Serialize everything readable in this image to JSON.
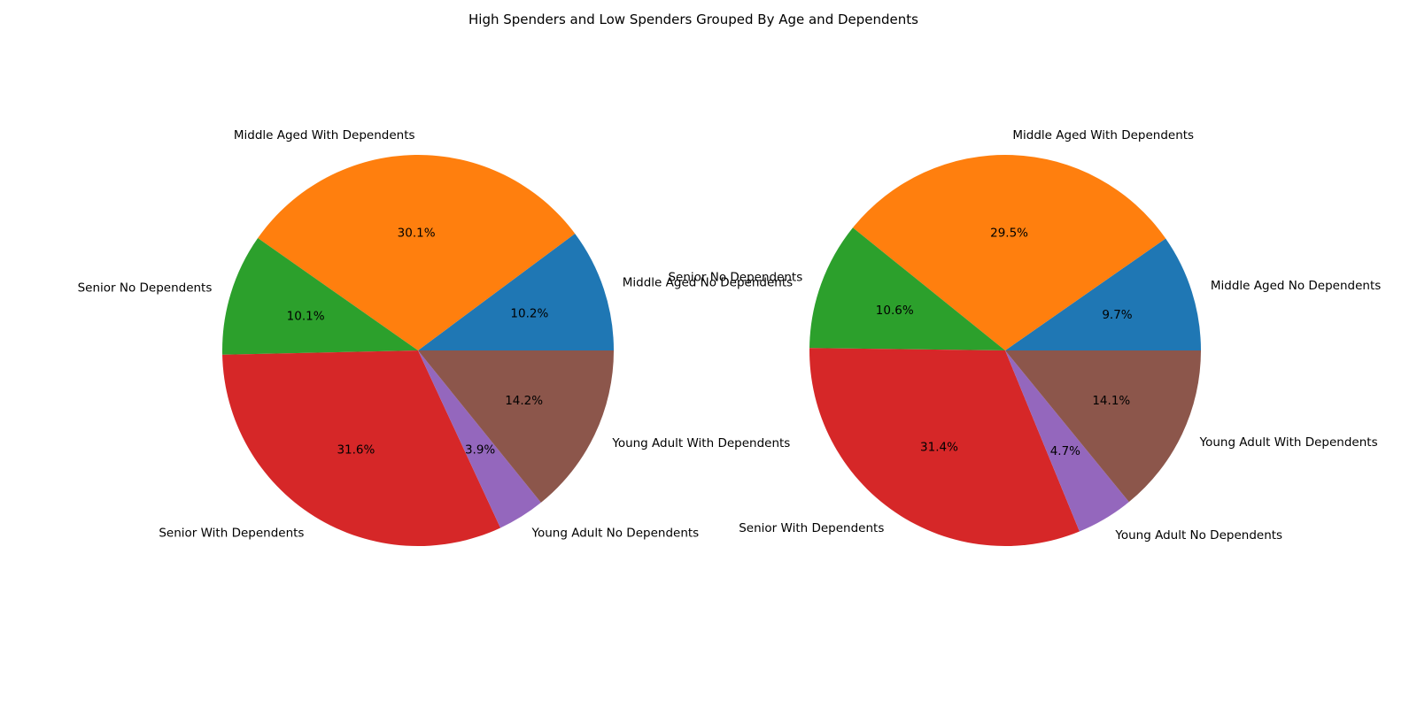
{
  "figure_title": "High Spenders and Low Spenders Grouped By Age and Dependents",
  "colors": [
    "#1f77b4",
    "#ff7f0e",
    "#2ca02c",
    "#d62728",
    "#9467bd",
    "#8c564b"
  ],
  "chart_data": [
    {
      "type": "pie",
      "title": "",
      "start_angle_deg": 0,
      "direction": "counterclockwise",
      "labels": [
        "Middle Aged No Dependents",
        "Middle Aged With Dependents",
        "Senior No Dependents",
        "Senior With Dependents",
        "Young Adult No Dependents",
        "Young Adult With Dependents"
      ],
      "values": [
        10.2,
        30.1,
        10.1,
        31.6,
        3.9,
        14.2
      ],
      "autopct_labels": [
        "10.2%",
        "30.1%",
        "10.1%",
        "31.6%",
        "3.9%",
        "14.2%"
      ]
    },
    {
      "type": "pie",
      "title": "",
      "start_angle_deg": 0,
      "direction": "counterclockwise",
      "labels": [
        "Middle Aged No Dependents",
        "Middle Aged With Dependents",
        "Senior No Dependents",
        "Senior With Dependents",
        "Young Adult No Dependents",
        "Young Adult With Dependents"
      ],
      "values": [
        9.7,
        29.5,
        10.6,
        31.4,
        4.7,
        14.1
      ],
      "autopct_labels": [
        "9.7%",
        "29.5%",
        "10.6%",
        "31.4%",
        "4.7%",
        "14.1%"
      ]
    }
  ]
}
